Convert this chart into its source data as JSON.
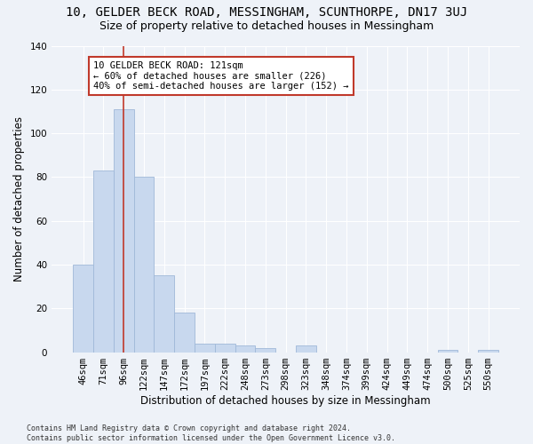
{
  "title": "10, GELDER BECK ROAD, MESSINGHAM, SCUNTHORPE, DN17 3UJ",
  "subtitle": "Size of property relative to detached houses in Messingham",
  "xlabel": "Distribution of detached houses by size in Messingham",
  "ylabel": "Number of detached properties",
  "categories": [
    "46sqm",
    "71sqm",
    "96sqm",
    "122sqm",
    "147sqm",
    "172sqm",
    "197sqm",
    "222sqm",
    "248sqm",
    "273sqm",
    "298sqm",
    "323sqm",
    "348sqm",
    "374sqm",
    "399sqm",
    "424sqm",
    "449sqm",
    "474sqm",
    "500sqm",
    "525sqm",
    "550sqm"
  ],
  "values": [
    40,
    83,
    111,
    80,
    35,
    18,
    4,
    4,
    3,
    2,
    0,
    3,
    0,
    0,
    0,
    0,
    0,
    0,
    1,
    0,
    1
  ],
  "bar_color": "#c8d8ee",
  "bar_edge_color": "#a0b8d8",
  "highlight_bar_index": 2,
  "vline_color": "#c0392b",
  "ylim": [
    0,
    140
  ],
  "yticks": [
    0,
    20,
    40,
    60,
    80,
    100,
    120,
    140
  ],
  "annotation_text": "10 GELDER BECK ROAD: 121sqm\n← 60% of detached houses are smaller (226)\n40% of semi-detached houses are larger (152) →",
  "annotation_box_color": "#ffffff",
  "annotation_box_edge_color": "#c0392b",
  "footer_text": "Contains HM Land Registry data © Crown copyright and database right 2024.\nContains public sector information licensed under the Open Government Licence v3.0.",
  "background_color": "#eef2f8",
  "grid_color": "#ffffff",
  "title_fontsize": 10,
  "subtitle_fontsize": 9,
  "ylabel_fontsize": 8.5,
  "xlabel_fontsize": 8.5,
  "tick_fontsize": 7.5,
  "footer_fontsize": 6,
  "annotation_fontsize": 7.5
}
